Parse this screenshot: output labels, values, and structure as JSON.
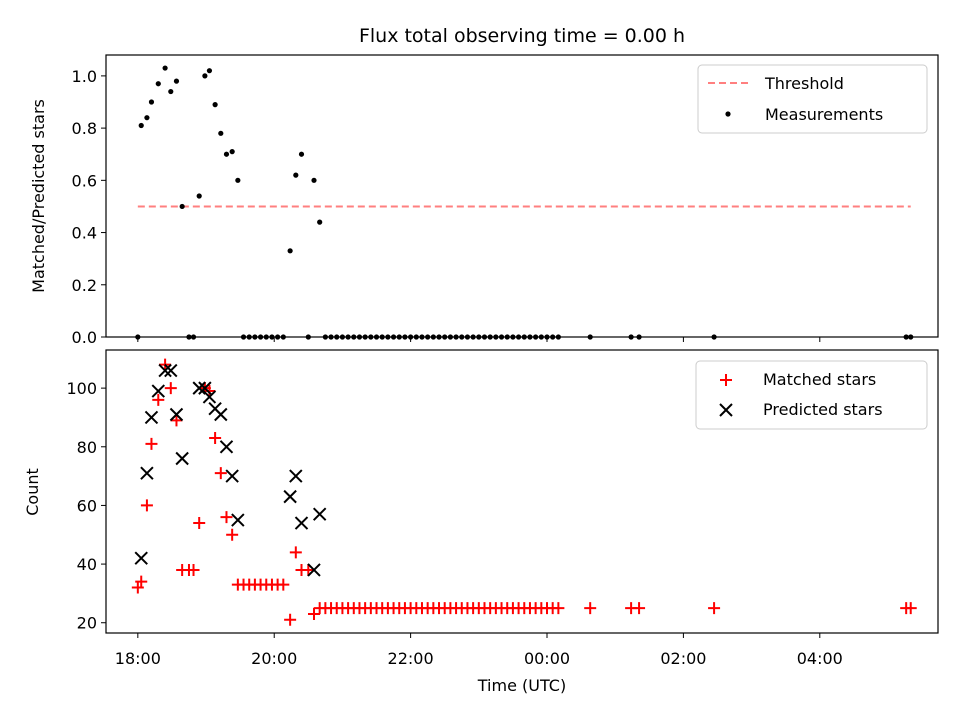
{
  "chart_data": [
    {
      "type": "scatter",
      "title": "Flux total observing time = 0.00 h",
      "xlabel": "",
      "ylabel": "Matched/Predicted stars",
      "ylim": [
        0,
        1.08
      ],
      "yticks": [
        "0.0",
        "0.2",
        "0.4",
        "0.6",
        "0.8",
        "1.0"
      ],
      "xlim": [
        "17:32",
        "05:44"
      ],
      "legend_position": "top-right",
      "threshold": {
        "name": "Threshold",
        "value": 0.5,
        "x_start": "18:00",
        "x_end": "05:20",
        "color": "#ff7f7f"
      },
      "series": [
        {
          "name": "Measurements",
          "color": "#000000",
          "points": [
            [
              "18:00",
              0.0
            ],
            [
              "18:03",
              0.81
            ],
            [
              "18:08",
              0.84
            ],
            [
              "18:12",
              0.9
            ],
            [
              "18:18",
              0.97
            ],
            [
              "18:24",
              1.03
            ],
            [
              "18:29",
              0.94
            ],
            [
              "18:34",
              0.98
            ],
            [
              "18:39",
              0.5
            ],
            [
              "18:45",
              0.0
            ],
            [
              "18:49",
              0.0
            ],
            [
              "18:54",
              0.54
            ],
            [
              "18:59",
              1.0
            ],
            [
              "19:03",
              1.02
            ],
            [
              "19:08",
              0.89
            ],
            [
              "19:13",
              0.78
            ],
            [
              "19:18",
              0.7
            ],
            [
              "19:23",
              0.71
            ],
            [
              "19:28",
              0.6
            ],
            [
              "19:33",
              0.0
            ],
            [
              "19:38",
              0.0
            ],
            [
              "19:43",
              0.0
            ],
            [
              "19:48",
              0.0
            ],
            [
              "19:53",
              0.0
            ],
            [
              "19:58",
              0.0
            ],
            [
              "20:03",
              0.0
            ],
            [
              "20:08",
              0.0
            ],
            [
              "20:14",
              0.33
            ],
            [
              "20:19",
              0.62
            ],
            [
              "20:24",
              0.7
            ],
            [
              "20:30",
              0.0
            ],
            [
              "20:35",
              0.6
            ],
            [
              "20:40",
              0.44
            ],
            [
              "20:45",
              0.0
            ],
            [
              "20:50",
              0.0
            ],
            [
              "20:55",
              0.0
            ],
            [
              "21:00",
              0.0
            ],
            [
              "21:05",
              0.0
            ],
            [
              "21:10",
              0.0
            ],
            [
              "21:15",
              0.0
            ],
            [
              "21:20",
              0.0
            ],
            [
              "21:25",
              0.0
            ],
            [
              "21:30",
              0.0
            ],
            [
              "21:35",
              0.0
            ],
            [
              "21:40",
              0.0
            ],
            [
              "21:45",
              0.0
            ],
            [
              "21:50",
              0.0
            ],
            [
              "21:55",
              0.0
            ],
            [
              "22:00",
              0.0
            ],
            [
              "22:05",
              0.0
            ],
            [
              "22:10",
              0.0
            ],
            [
              "22:15",
              0.0
            ],
            [
              "22:20",
              0.0
            ],
            [
              "22:25",
              0.0
            ],
            [
              "22:30",
              0.0
            ],
            [
              "22:35",
              0.0
            ],
            [
              "22:40",
              0.0
            ],
            [
              "22:45",
              0.0
            ],
            [
              "22:50",
              0.0
            ],
            [
              "22:55",
              0.0
            ],
            [
              "23:00",
              0.0
            ],
            [
              "23:05",
              0.0
            ],
            [
              "23:10",
              0.0
            ],
            [
              "23:15",
              0.0
            ],
            [
              "23:20",
              0.0
            ],
            [
              "23:25",
              0.0
            ],
            [
              "23:30",
              0.0
            ],
            [
              "23:35",
              0.0
            ],
            [
              "23:40",
              0.0
            ],
            [
              "23:45",
              0.0
            ],
            [
              "23:50",
              0.0
            ],
            [
              "23:55",
              0.0
            ],
            [
              "00:00",
              0.0
            ],
            [
              "00:05",
              0.0
            ],
            [
              "00:10",
              0.0
            ],
            [
              "00:38",
              0.0
            ],
            [
              "01:14",
              0.0
            ],
            [
              "01:21",
              0.0
            ],
            [
              "02:27",
              0.0
            ],
            [
              "05:16",
              0.0
            ],
            [
              "05:20",
              0.0
            ]
          ]
        }
      ]
    },
    {
      "type": "scatter",
      "title": "",
      "xlabel": "Time (UTC)",
      "ylabel": "Count",
      "ylim": [
        16.5,
        113
      ],
      "yticks": [
        "20",
        "40",
        "60",
        "80",
        "100"
      ],
      "xlim": [
        "17:32",
        "05:44"
      ],
      "xticks": [
        "18:00",
        "20:00",
        "22:00",
        "00:00",
        "02:00",
        "04:00"
      ],
      "legend_position": "top-right",
      "series": [
        {
          "name": "Matched stars",
          "color": "#ff0000",
          "marker": "plus",
          "points": [
            [
              "18:00",
              32
            ],
            [
              "18:03",
              34
            ],
            [
              "18:08",
              60
            ],
            [
              "18:12",
              81
            ],
            [
              "18:18",
              96
            ],
            [
              "18:24",
              108
            ],
            [
              "18:29",
              100
            ],
            [
              "18:34",
              89
            ],
            [
              "18:39",
              38
            ],
            [
              "18:45",
              38
            ],
            [
              "18:49",
              38
            ],
            [
              "18:54",
              54
            ],
            [
              "18:59",
              100
            ],
            [
              "19:03",
              99
            ],
            [
              "19:08",
              83
            ],
            [
              "19:13",
              71
            ],
            [
              "19:18",
              56
            ],
            [
              "19:23",
              50
            ],
            [
              "19:28",
              33
            ],
            [
              "19:33",
              33
            ],
            [
              "19:38",
              33
            ],
            [
              "19:43",
              33
            ],
            [
              "19:48",
              33
            ],
            [
              "19:53",
              33
            ],
            [
              "19:58",
              33
            ],
            [
              "20:03",
              33
            ],
            [
              "20:08",
              33
            ],
            [
              "20:14",
              21
            ],
            [
              "20:19",
              44
            ],
            [
              "20:24",
              38
            ],
            [
              "20:30",
              38
            ],
            [
              "20:35",
              23
            ],
            [
              "20:40",
              25
            ],
            [
              "20:45",
              25
            ],
            [
              "20:50",
              25
            ],
            [
              "20:55",
              25
            ],
            [
              "21:00",
              25
            ],
            [
              "21:05",
              25
            ],
            [
              "21:10",
              25
            ],
            [
              "21:15",
              25
            ],
            [
              "21:20",
              25
            ],
            [
              "21:25",
              25
            ],
            [
              "21:30",
              25
            ],
            [
              "21:35",
              25
            ],
            [
              "21:40",
              25
            ],
            [
              "21:45",
              25
            ],
            [
              "21:50",
              25
            ],
            [
              "21:55",
              25
            ],
            [
              "22:00",
              25
            ],
            [
              "22:05",
              25
            ],
            [
              "22:10",
              25
            ],
            [
              "22:15",
              25
            ],
            [
              "22:20",
              25
            ],
            [
              "22:25",
              25
            ],
            [
              "22:30",
              25
            ],
            [
              "22:35",
              25
            ],
            [
              "22:40",
              25
            ],
            [
              "22:45",
              25
            ],
            [
              "22:50",
              25
            ],
            [
              "22:55",
              25
            ],
            [
              "23:00",
              25
            ],
            [
              "23:05",
              25
            ],
            [
              "23:10",
              25
            ],
            [
              "23:15",
              25
            ],
            [
              "23:20",
              25
            ],
            [
              "23:25",
              25
            ],
            [
              "23:30",
              25
            ],
            [
              "23:35",
              25
            ],
            [
              "23:40",
              25
            ],
            [
              "23:45",
              25
            ],
            [
              "23:50",
              25
            ],
            [
              "23:55",
              25
            ],
            [
              "00:00",
              25
            ],
            [
              "00:05",
              25
            ],
            [
              "00:10",
              25
            ],
            [
              "00:38",
              25
            ],
            [
              "01:14",
              25
            ],
            [
              "01:21",
              25
            ],
            [
              "02:27",
              25
            ],
            [
              "05:16",
              25
            ],
            [
              "05:20",
              25
            ]
          ]
        },
        {
          "name": "Predicted stars",
          "color": "#000000",
          "marker": "x",
          "points": [
            [
              "18:03",
              42
            ],
            [
              "18:08",
              71
            ],
            [
              "18:12",
              90
            ],
            [
              "18:18",
              99
            ],
            [
              "18:24",
              106
            ],
            [
              "18:29",
              106
            ],
            [
              "18:34",
              91
            ],
            [
              "18:39",
              76
            ],
            [
              "18:54",
              100
            ],
            [
              "18:59",
              100
            ],
            [
              "19:03",
              97
            ],
            [
              "19:08",
              93
            ],
            [
              "19:13",
              91
            ],
            [
              "19:18",
              80
            ],
            [
              "19:23",
              70
            ],
            [
              "19:28",
              55
            ],
            [
              "20:14",
              63
            ],
            [
              "20:19",
              70
            ],
            [
              "20:24",
              54
            ],
            [
              "20:35",
              38
            ],
            [
              "20:40",
              57
            ]
          ]
        }
      ]
    }
  ]
}
